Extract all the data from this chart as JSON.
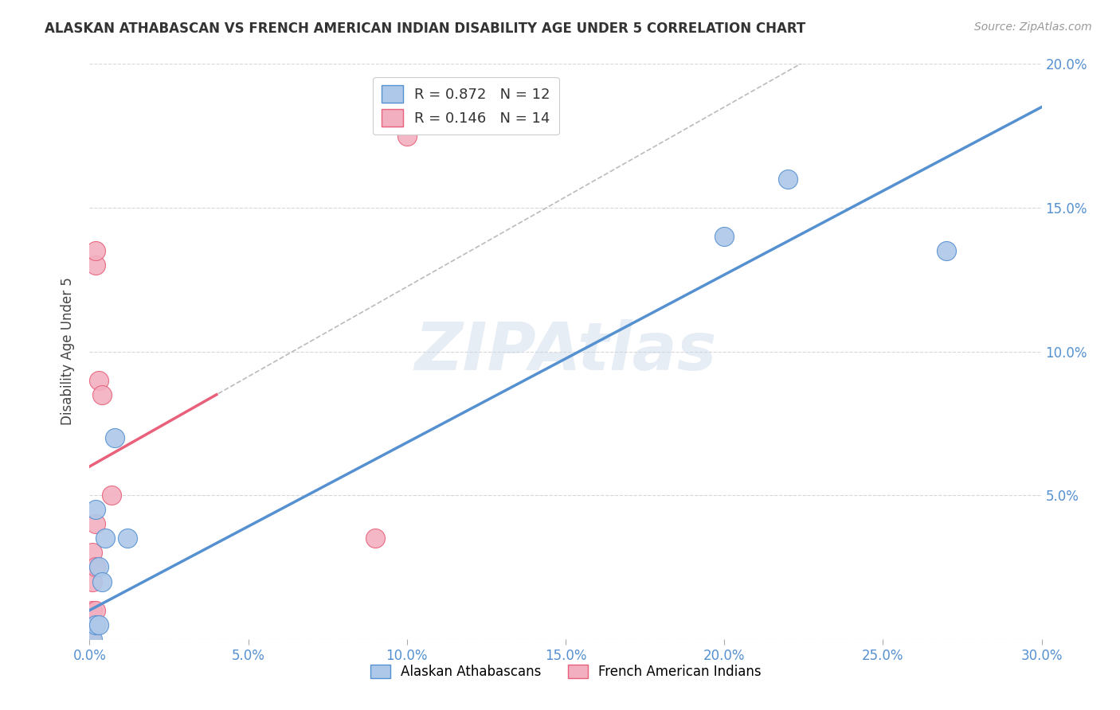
{
  "title": "ALASKAN ATHABASCAN VS FRENCH AMERICAN INDIAN DISABILITY AGE UNDER 5 CORRELATION CHART",
  "source": "Source: ZipAtlas.com",
  "ylabel_label": "Disability Age Under 5",
  "xlim": [
    0.0,
    0.3
  ],
  "ylim": [
    0.0,
    0.2
  ],
  "xticks": [
    0.0,
    0.05,
    0.1,
    0.15,
    0.2,
    0.25,
    0.3
  ],
  "yticks": [
    0.0,
    0.05,
    0.1,
    0.15,
    0.2
  ],
  "xtick_labels": [
    "0.0%",
    "5.0%",
    "10.0%",
    "15.0%",
    "20.0%",
    "25.0%",
    "30.0%"
  ],
  "ytick_labels_right": [
    "",
    "5.0%",
    "10.0%",
    "15.0%",
    "20.0%"
  ],
  "blue_scatter": [
    [
      0.001,
      0.0
    ],
    [
      0.002,
      0.005
    ],
    [
      0.002,
      0.045
    ],
    [
      0.003,
      0.005
    ],
    [
      0.003,
      0.025
    ],
    [
      0.004,
      0.02
    ],
    [
      0.005,
      0.035
    ],
    [
      0.008,
      0.07
    ],
    [
      0.012,
      0.035
    ],
    [
      0.2,
      0.14
    ],
    [
      0.22,
      0.16
    ],
    [
      0.27,
      0.135
    ]
  ],
  "pink_scatter": [
    [
      0.0005,
      0.0
    ],
    [
      0.001,
      0.01
    ],
    [
      0.001,
      0.02
    ],
    [
      0.001,
      0.03
    ],
    [
      0.002,
      0.01
    ],
    [
      0.002,
      0.025
    ],
    [
      0.002,
      0.04
    ],
    [
      0.002,
      0.13
    ],
    [
      0.002,
      0.135
    ],
    [
      0.003,
      0.09
    ],
    [
      0.004,
      0.085
    ],
    [
      0.007,
      0.05
    ],
    [
      0.09,
      0.035
    ],
    [
      0.1,
      0.175
    ]
  ],
  "blue_color": "#adc8e8",
  "pink_color": "#f2afc0",
  "blue_line_color": "#5590d0",
  "pink_line_color": "#e8607a",
  "pink_line_x_end": 0.04,
  "blue_R": 0.872,
  "blue_N": 12,
  "pink_R": 0.146,
  "pink_N": 14,
  "legend_label_blue": "Alaskan Athabascans",
  "legend_label_pink": "French American Indians",
  "watermark": "ZIPAtlas",
  "background_color": "#ffffff",
  "grid_color": "#d8d8d8"
}
